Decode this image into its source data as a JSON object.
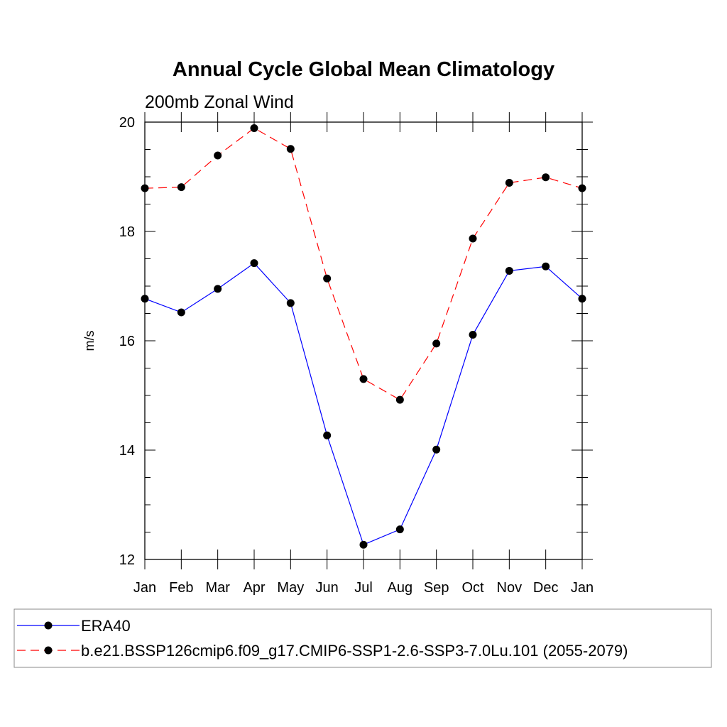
{
  "chart_data": {
    "type": "line",
    "title": "Annual Cycle Global Mean Climatology",
    "subtitle": "200mb Zonal Wind",
    "xlabel": "",
    "ylabel": "m/s",
    "categories": [
      "Jan",
      "Feb",
      "Mar",
      "Apr",
      "May",
      "Jun",
      "Jul",
      "Aug",
      "Sep",
      "Oct",
      "Nov",
      "Dec",
      "Jan"
    ],
    "ylim": [
      12,
      20
    ],
    "yticks": [
      12,
      14,
      16,
      18,
      20
    ],
    "grid": false,
    "legend_position": "bottom",
    "series": [
      {
        "name": "ERA40",
        "color": "#0000ff",
        "dash": "solid",
        "values": [
          16.77,
          16.52,
          16.95,
          17.42,
          16.69,
          14.27,
          12.27,
          12.55,
          14.01,
          16.11,
          17.28,
          17.36,
          16.77
        ]
      },
      {
        "name": "b.e21.BSSP126cmip6.f09_g17.CMIP6-SSP1-2.6-SSP3-7.0Lu.101 (2055-2079)",
        "color": "#ff0000",
        "dash": "dashed",
        "values": [
          18.79,
          18.81,
          19.39,
          19.89,
          19.51,
          17.14,
          15.3,
          14.92,
          15.95,
          17.87,
          18.89,
          18.99,
          18.79
        ]
      }
    ]
  }
}
